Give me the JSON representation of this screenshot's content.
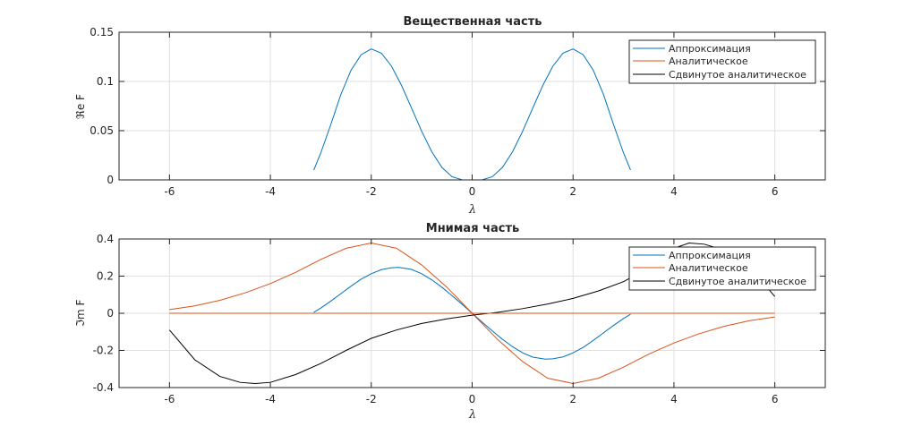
{
  "colors": {
    "approx": "#0072BD",
    "analytic": "#D95319",
    "shifted": "#000000",
    "grid": "#dfdfdf",
    "axis": "#262626"
  },
  "chart_data": [
    {
      "type": "line",
      "title": "Вещественная часть",
      "xlabel": "λ",
      "ylabel": "ℜe F",
      "xlim": [
        -7,
        7
      ],
      "ylim": [
        0,
        0.15
      ],
      "xticks": [
        -6,
        -4,
        -2,
        0,
        2,
        4,
        6
      ],
      "xtick_labels": [
        "-6",
        "-4",
        "-2",
        "0",
        "2",
        "4",
        "6"
      ],
      "yticks": [
        0,
        0.05,
        0.1,
        0.15
      ],
      "ytick_labels": [
        "0",
        "0.05",
        "0.1",
        "0.15"
      ],
      "grid": true,
      "legend_position": "top-right",
      "series": [
        {
          "name": "Аппроксимация",
          "color_key": "approx",
          "x": [
            -3.14,
            -3.0,
            -2.8,
            -2.6,
            -2.4,
            -2.2,
            -2.0,
            -1.8,
            -1.6,
            -1.4,
            -1.2,
            -1.0,
            -0.8,
            -0.6,
            -0.4,
            -0.2,
            0.0,
            0.2,
            0.4,
            0.6,
            0.8,
            1.0,
            1.2,
            1.4,
            1.6,
            1.8,
            2.0,
            2.2,
            2.4,
            2.6,
            2.8,
            3.0,
            3.14
          ],
          "y": [
            0.0099,
            0.0275,
            0.0566,
            0.0872,
            0.1115,
            0.1272,
            0.133,
            0.1287,
            0.1156,
            0.0959,
            0.0728,
            0.0494,
            0.0285,
            0.0127,
            0.0032,
            0.0001,
            0.0,
            0.0001,
            0.0032,
            0.0127,
            0.0285,
            0.0494,
            0.0728,
            0.0959,
            0.1156,
            0.1287,
            0.133,
            0.1272,
            0.1115,
            0.0872,
            0.0566,
            0.0275,
            0.0099
          ]
        },
        {
          "name": "Аналитическое",
          "color_key": "analytic",
          "x": [
            -6,
            6
          ],
          "y": [
            0,
            0
          ]
        },
        {
          "name": "Сдвинутое аналитическое",
          "color_key": "shifted",
          "x": [
            -6,
            6
          ],
          "y": [
            0,
            0
          ]
        }
      ]
    },
    {
      "type": "line",
      "title": "Мнимая часть",
      "xlabel": "λ",
      "ylabel": "ℑm F",
      "xlim": [
        -7,
        7
      ],
      "ylim": [
        -0.4,
        0.4
      ],
      "xticks": [
        -6,
        -4,
        -2,
        0,
        2,
        4,
        6
      ],
      "xtick_labels": [
        "-6",
        "-4",
        "-2",
        "0",
        "2",
        "4",
        "6"
      ],
      "yticks": [
        -0.4,
        -0.2,
        0,
        0.2,
        0.4
      ],
      "ytick_labels": [
        "-0.4",
        "-0.2",
        "0",
        "0.2",
        "0.4"
      ],
      "grid": true,
      "legend_position": "top-right",
      "series": [
        {
          "name": "Аппроксимация",
          "color_key": "approx",
          "x": [
            -3.14,
            -3.0,
            -2.8,
            -2.6,
            -2.4,
            -2.2,
            -2.0,
            -1.8,
            -1.6,
            -1.45,
            -1.2,
            -1.0,
            -0.8,
            -0.6,
            -0.4,
            -0.2,
            0.0,
            0.2,
            0.4,
            0.6,
            0.8,
            1.0,
            1.2,
            1.45,
            1.6,
            1.8,
            2.0,
            2.2,
            2.4,
            2.6,
            2.8,
            3.0,
            3.14
          ],
          "y": [
            0.005,
            0.028,
            0.066,
            0.106,
            0.146,
            0.184,
            0.213,
            0.235,
            0.245,
            0.247,
            0.236,
            0.213,
            0.18,
            0.14,
            0.095,
            0.048,
            0.0,
            -0.048,
            -0.095,
            -0.14,
            -0.18,
            -0.213,
            -0.236,
            -0.247,
            -0.245,
            -0.235,
            -0.213,
            -0.184,
            -0.146,
            -0.106,
            -0.066,
            -0.028,
            -0.005
          ]
        },
        {
          "name": "Аналитическое",
          "color_key": "analytic",
          "x": [
            -6.0,
            -5.5,
            -5.0,
            -4.5,
            -4.0,
            -3.5,
            -3.0,
            -2.5,
            -2.0,
            -1.5,
            -1.0,
            -0.5,
            0.0,
            0.5,
            1.0,
            1.5,
            2.0,
            2.5,
            3.0,
            3.5,
            4.0,
            4.5,
            5.0,
            5.5,
            6.0
          ],
          "y": [
            0.02,
            0.04,
            0.07,
            0.11,
            0.16,
            0.22,
            0.29,
            0.35,
            0.378,
            0.35,
            0.26,
            0.14,
            0.0,
            -0.14,
            -0.26,
            -0.35,
            -0.378,
            -0.35,
            -0.29,
            -0.22,
            -0.16,
            -0.11,
            -0.07,
            -0.04,
            -0.02
          ]
        },
        {
          "name": "Сдвинутое аналитическое",
          "color_key": "shifted",
          "x": [
            -6.0,
            -5.5,
            -5.0,
            -4.6,
            -4.3,
            -4.0,
            -3.5,
            -3.0,
            -2.5,
            -2.0,
            -1.5,
            -1.0,
            -0.5,
            0.0,
            0.5,
            1.0,
            1.5,
            2.0,
            2.5,
            3.0,
            3.5,
            4.0,
            4.3,
            4.6,
            5.0,
            5.5,
            6.0
          ],
          "y": [
            -0.09,
            -0.25,
            -0.34,
            -0.372,
            -0.378,
            -0.372,
            -0.33,
            -0.27,
            -0.2,
            -0.135,
            -0.09,
            -0.055,
            -0.03,
            -0.01,
            0.005,
            0.025,
            0.05,
            0.08,
            0.12,
            0.17,
            0.245,
            0.35,
            0.378,
            0.372,
            0.34,
            0.25,
            0.09
          ]
        },
        {
          "name": "",
          "color_key": "analytic",
          "x": [
            -6,
            6
          ],
          "y": [
            0,
            0
          ]
        }
      ]
    }
  ]
}
